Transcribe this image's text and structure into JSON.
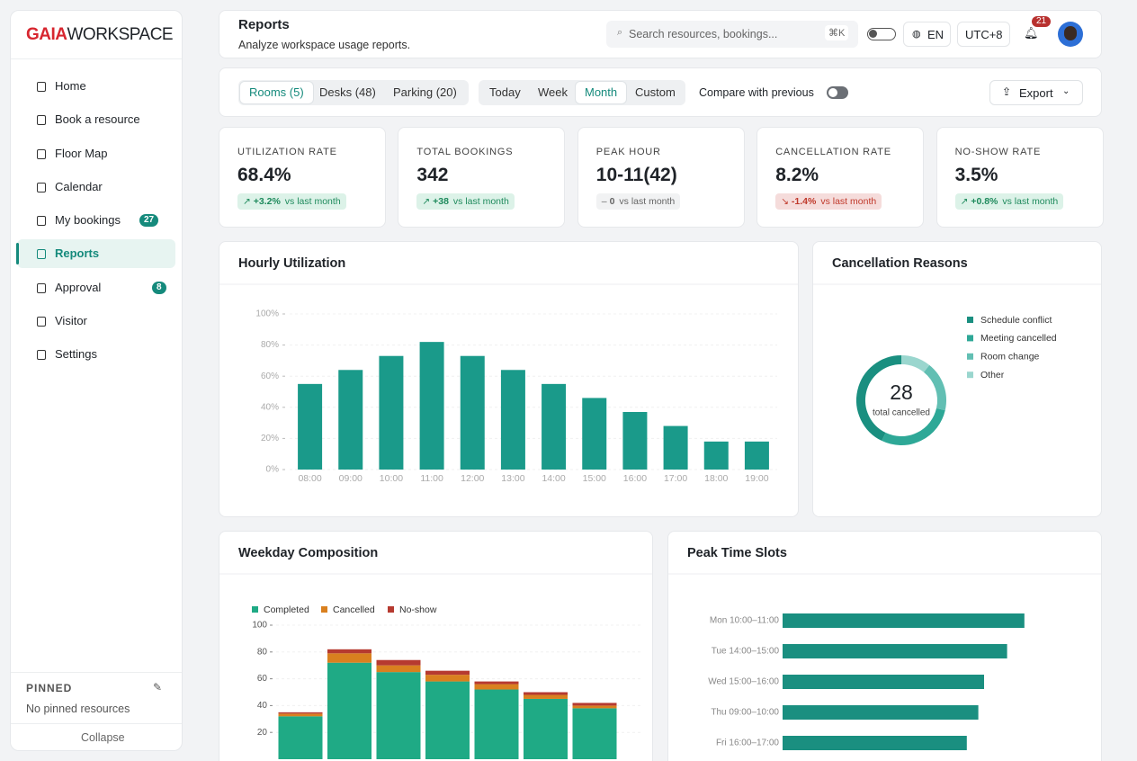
{
  "sidebar": {
    "brand_bold": "GAIA",
    "brand_rest": "WORKSPACE",
    "nav": [
      {
        "label": "Home"
      },
      {
        "label": "Book a resource"
      },
      {
        "label": "Floor Map"
      },
      {
        "label": "Calendar"
      },
      {
        "label": "My bookings",
        "badge": 27
      },
      {
        "label": "Reports",
        "active": true
      },
      {
        "label": "Approval",
        "badge": 8
      },
      {
        "label": "Visitor",
        "expandable": true
      },
      {
        "label": "Settings"
      }
    ],
    "pinned_title": "PINNED",
    "pinned_empty": "No pinned resources",
    "collapse": "Collapse"
  },
  "header": {
    "title": "Reports",
    "subtitle": "Analyze workspace usage reports.",
    "search_placeholder": "Search resources, bookings...",
    "shortcut": "⌘K",
    "language": "EN",
    "timezone": "UTC+8",
    "notifications": 21
  },
  "toolbar": {
    "resource_tabs": [
      "Rooms (5)",
      "Desks (48)",
      "Parking (20)"
    ],
    "resource_active": 0,
    "period_tabs": [
      "Today",
      "Week",
      "Month",
      "Custom"
    ],
    "period_active": 2,
    "compare": "Compare with previous",
    "export": "Export"
  },
  "kpis": [
    {
      "label": "UTILIZATION RATE",
      "value": "68.4%",
      "delta": "+3.2%",
      "note": "vs last month",
      "trend": "up"
    },
    {
      "label": "TOTAL BOOKINGS",
      "value": "342",
      "delta": "+38",
      "note": "vs last month",
      "trend": "up"
    },
    {
      "label": "PEAK HOUR",
      "value": "10-11(42)",
      "delta": "0",
      "note": "vs last month",
      "trend": "flat"
    },
    {
      "label": "CANCELLATION RATE",
      "value": "8.2%",
      "delta": "-1.4%",
      "note": "vs last month",
      "trend": "down"
    },
    {
      "label": "NO-SHOW RATE",
      "value": "3.5%",
      "delta": "+0.8%",
      "note": "vs last month",
      "trend": "up"
    }
  ],
  "chart_data": [
    {
      "type": "bar",
      "title": "Hourly Utilization",
      "categories": [
        "08:00",
        "09:00",
        "10:00",
        "11:00",
        "12:00",
        "13:00",
        "14:00",
        "15:00",
        "16:00",
        "17:00",
        "18:00",
        "19:00"
      ],
      "values": [
        55,
        64,
        73,
        82,
        73,
        64,
        55,
        46,
        37,
        28,
        18,
        18
      ],
      "color": "#1a9a8a",
      "ylim": [
        0,
        100
      ],
      "yticks": [
        {
          "value": 0,
          "label": "0%"
        },
        {
          "value": 20,
          "label": "20%"
        },
        {
          "value": 40,
          "label": "40%"
        },
        {
          "value": 60,
          "label": "60%"
        },
        {
          "value": 80,
          "label": "80%"
        },
        {
          "value": 100,
          "label": "100%"
        }
      ],
      "grid": true
    },
    {
      "type": "pie",
      "title": "Cancellation Reasons",
      "categories": [
        "Schedule conflict",
        "Meeting cancelled",
        "Room change",
        "Other"
      ],
      "values": [
        12,
        8,
        5,
        3
      ],
      "colors": [
        "#1a8f80",
        "#2ea897",
        "#62bfb3",
        "#9ad6ce"
      ],
      "total": 28,
      "total_label": "total cancelled",
      "donut": true
    },
    {
      "type": "stacked_bar",
      "title": "Weekday Composition",
      "categories": [
        null,
        null,
        null,
        null,
        null,
        null,
        null
      ],
      "series": [
        {
          "name": "Completed",
          "color": "#1faa85",
          "values": [
            32,
            72,
            65,
            58,
            52,
            45,
            38
          ]
        },
        {
          "name": "Cancelled",
          "color": "#d9801f",
          "values": [
            2,
            7,
            5,
            5,
            4,
            3,
            2
          ]
        },
        {
          "name": "No-show",
          "color": "#b63a30",
          "values": [
            1,
            3,
            4,
            3,
            2,
            2,
            2
          ]
        }
      ],
      "ylim": [
        0,
        100
      ],
      "yticks": [
        20,
        40,
        60,
        80,
        100
      ],
      "grid": true
    },
    {
      "type": "hbar",
      "title": "Peak Time Slots",
      "categories": [
        "Mon 10:00–11:00",
        "Tue 14:00–15:00",
        "Wed 15:00–16:00",
        "Thu 09:00–10:00",
        "Fri 16:00–17:00"
      ],
      "values": [
        42,
        39,
        35,
        34,
        32
      ],
      "color": "#1a8f80",
      "xlim": [
        0,
        50
      ]
    }
  ]
}
